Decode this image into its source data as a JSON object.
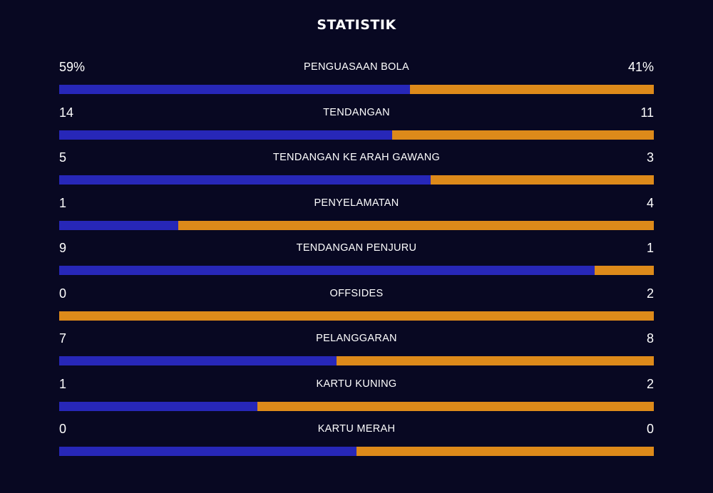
{
  "title": "STATISTIK",
  "colors": {
    "background": "#080822",
    "home_bar": "#2727b8",
    "away_bar": "#dd8a1a",
    "text": "#ffffff"
  },
  "stats": [
    {
      "label": "PENGUASAAN BOLA",
      "home": "59%",
      "away": "41%",
      "home_share": 0.59
    },
    {
      "label": "TENDANGAN",
      "home": "14",
      "away": "11",
      "home_share": 0.56
    },
    {
      "label": "TENDANGAN KE ARAH GAWANG",
      "home": "5",
      "away": "3",
      "home_share": 0.625
    },
    {
      "label": "PENYELAMATAN",
      "home": "1",
      "away": "4",
      "home_share": 0.2
    },
    {
      "label": "TENDANGAN PENJURU",
      "home": "9",
      "away": "1",
      "home_share": 0.9
    },
    {
      "label": "OFFSIDES",
      "home": "0",
      "away": "2",
      "home_share": 0.0
    },
    {
      "label": "PELANGGARAN",
      "home": "7",
      "away": "8",
      "home_share": 0.467
    },
    {
      "label": "KARTU KUNING",
      "home": "1",
      "away": "2",
      "home_share": 0.333
    },
    {
      "label": "KARTU MERAH",
      "home": "0",
      "away": "0",
      "home_share": 0.5
    }
  ]
}
